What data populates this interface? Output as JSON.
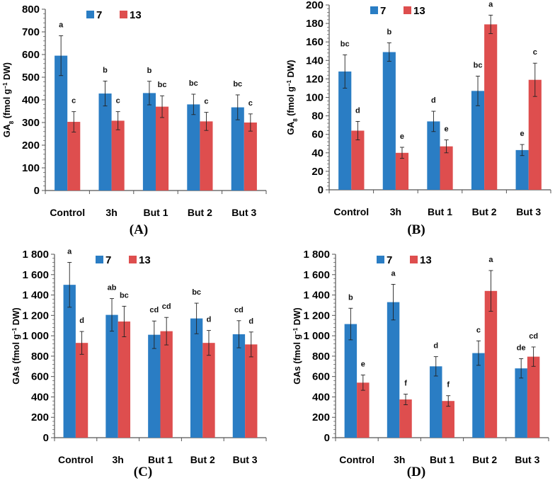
{
  "colors": {
    "series_7": "#2a7dc4",
    "series_13": "#de4e4e",
    "error": "#222222",
    "axis": "#555555"
  },
  "chart_data": [
    {
      "type": "bar",
      "panel_label": "(A)",
      "ylabel": {
        "pre": "GA",
        "sub": "8",
        "mid": " (fmol g",
        "sup": "−1",
        "post": " DW)"
      },
      "categories": [
        "Control",
        "3h",
        "But 1",
        "But 2",
        "But 3"
      ],
      "ylim": [
        0,
        800
      ],
      "ystep": 100,
      "yticks": [
        "0",
        "100",
        "200",
        "300",
        "400",
        "500",
        "600",
        "700",
        "800"
      ],
      "legend": "top-left",
      "series": [
        {
          "name": "7",
          "values": [
            595,
            428,
            430,
            380,
            367
          ],
          "errors": [
            88,
            55,
            52,
            45,
            55
          ],
          "letters": [
            "a",
            "b",
            "b",
            "bc",
            "bc"
          ]
        },
        {
          "name": "13",
          "values": [
            303,
            308,
            370,
            305,
            300
          ],
          "errors": [
            45,
            40,
            48,
            40,
            38
          ],
          "letters": [
            "c",
            "c",
            "bc",
            "c",
            "c"
          ]
        }
      ]
    },
    {
      "type": "bar",
      "panel_label": "(B)",
      "ylabel": {
        "pre": "GA",
        "sub": "8",
        "mid": " (fmol g",
        "sup": "−1",
        "post": " DW)"
      },
      "categories": [
        "Control",
        "3h",
        "But 1",
        "But 2",
        "But 3"
      ],
      "ylim": [
        0,
        200
      ],
      "ystep": 20,
      "yticks": [
        "0",
        "20",
        "40",
        "60",
        "80",
        "100",
        "120",
        "140",
        "160",
        "180",
        "200"
      ],
      "legend": "top-left",
      "series": [
        {
          "name": "7",
          "values": [
            128,
            149,
            74,
            107,
            43
          ],
          "errors": [
            18,
            10,
            11,
            16,
            6
          ],
          "letters": [
            "bc",
            "b",
            "d",
            "bc",
            "e"
          ]
        },
        {
          "name": "13",
          "values": [
            64,
            40,
            47,
            179,
            119
          ],
          "errors": [
            10,
            6,
            7,
            10,
            18
          ],
          "letters": [
            "d",
            "e",
            "e",
            "a",
            "c"
          ]
        }
      ]
    },
    {
      "type": "bar",
      "panel_label": "(C)",
      "ylabel": {
        "pre": "GAs",
        "sub": "",
        "mid": " (fmol g",
        "sup": "−1",
        "post": " DW)"
      },
      "categories": [
        "Control",
        "3h",
        "But 1",
        "But 2",
        "But 3"
      ],
      "ylim": [
        0,
        1800
      ],
      "ystep": 200,
      "yticks": [
        "0",
        "200",
        "400",
        "600",
        "800",
        "1 000",
        "1 200",
        "1 400",
        "1 600",
        "1 800"
      ],
      "legend": "top-left",
      "series": [
        {
          "name": "7",
          "values": [
            1500,
            1205,
            1010,
            1170,
            1015
          ],
          "errors": [
            220,
            160,
            135,
            150,
            133
          ],
          "letters": [
            "a",
            "ab",
            "cd",
            "bc",
            "cd"
          ]
        },
        {
          "name": "13",
          "values": [
            930,
            1140,
            1045,
            930,
            915
          ],
          "errors": [
            112,
            150,
            135,
            122,
            122
          ],
          "letters": [
            "d",
            "bc",
            "cd",
            "d",
            "d"
          ]
        }
      ]
    },
    {
      "type": "bar",
      "panel_label": "(D)",
      "ylabel": {
        "pre": "GAs",
        "sub": "",
        "mid": " (fmol g",
        "sup": "−1",
        "post": " DW)"
      },
      "categories": [
        "Control",
        "3h",
        "But 1",
        "But 2",
        "But 3"
      ],
      "ylim": [
        0,
        1800
      ],
      "ystep": 200,
      "yticks": [
        "0",
        "200",
        "400",
        "600",
        "800",
        "1 000",
        "1 200",
        "1 400",
        "1 600",
        "1 800"
      ],
      "legend": "top-left",
      "series": [
        {
          "name": "7",
          "values": [
            1115,
            1330,
            700,
            830,
            680
          ],
          "errors": [
            155,
            175,
            95,
            120,
            95
          ],
          "letters": [
            "b",
            "a",
            "d",
            "c",
            "de"
          ]
        },
        {
          "name": "13",
          "values": [
            540,
            375,
            360,
            1440,
            795
          ],
          "errors": [
            75,
            52,
            52,
            200,
            95
          ],
          "letters": [
            "e",
            "f",
            "f",
            "a",
            "cd"
          ]
        }
      ]
    }
  ]
}
